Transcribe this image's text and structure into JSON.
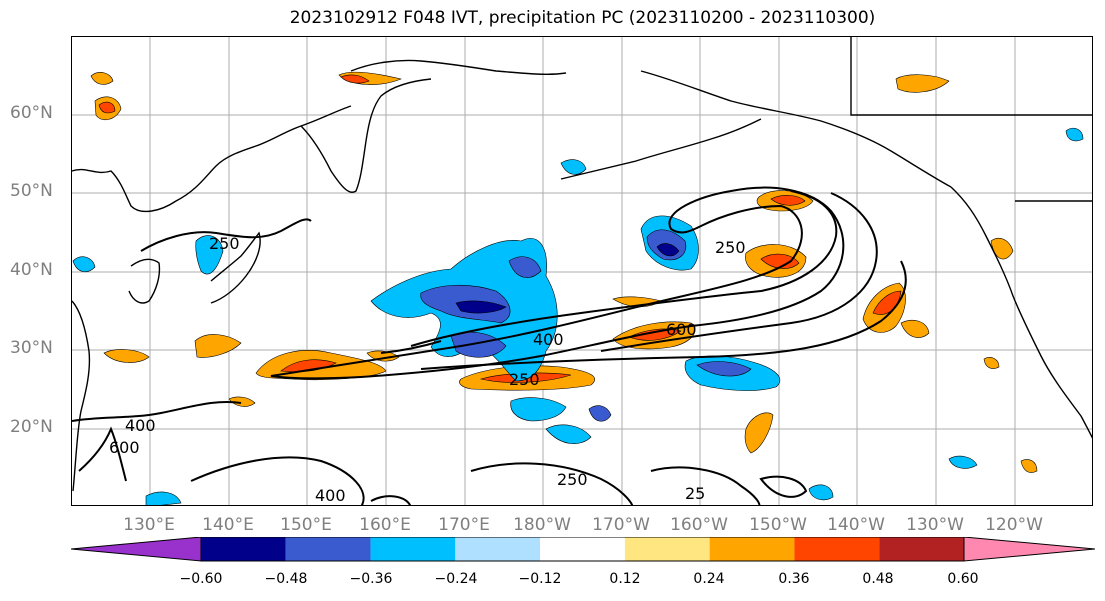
{
  "title": "2023102912 F048 IVT, precipitation PC (2023110200 - 2023110300)",
  "lat_labels": [
    "60°N",
    "50°N",
    "40°N",
    "30°N",
    "20°N"
  ],
  "lon_labels": [
    "130°E",
    "140°E",
    "150°E",
    "160°E",
    "170°E",
    "180°W",
    "170°W",
    "160°W",
    "150°W",
    "140°W",
    "130°W",
    "120°W"
  ],
  "contour_labels": [
    "250",
    "250",
    "400",
    "600",
    "250",
    "400",
    "600",
    "400",
    "250",
    "25"
  ],
  "colorbar": {
    "ticks": [
      "−0.60",
      "−0.48",
      "−0.36",
      "−0.24",
      "−0.12",
      "0.12",
      "0.24",
      "0.36",
      "0.48",
      "0.60"
    ],
    "colors": [
      "#9932cc",
      "#00008b",
      "#3a5bd0",
      "#00bfff",
      "#b0e0ff",
      "#ffffff",
      "#ffe680",
      "#ffa500",
      "#ff4500",
      "#b22222",
      "#ff88b0"
    ]
  },
  "colors": {
    "land": "#000000",
    "grid": "#999999",
    "ivt_contour": "#000000",
    "axis_labels": "#7f7f7f"
  }
}
